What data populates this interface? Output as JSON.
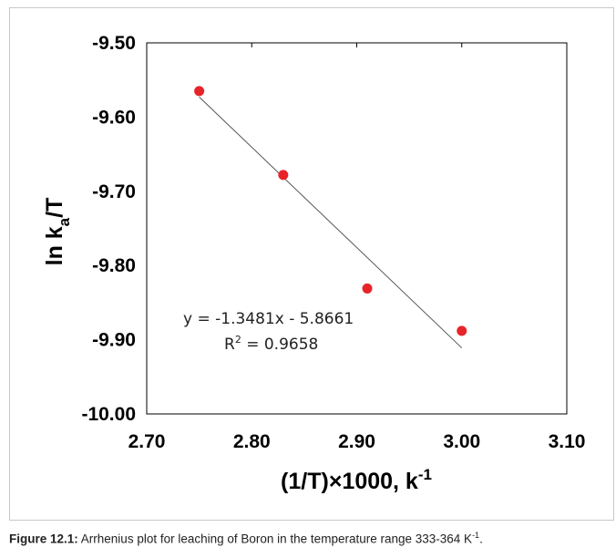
{
  "chart_data": {
    "type": "scatter",
    "title": "",
    "xlabel": {
      "main": "(1/T)×1000, k",
      "sup": "-1"
    },
    "ylabel": {
      "pre": "ln k",
      "sub": "a",
      "post": "/T"
    },
    "xlim": [
      2.7,
      3.1
    ],
    "ylim": [
      -10.0,
      -9.5
    ],
    "xticks": [
      "2.70",
      "2.80",
      "2.90",
      "3.00",
      "3.10"
    ],
    "yticks": [
      "-9.50",
      "-9.60",
      "-9.70",
      "-9.80",
      "-9.90",
      "-10.00"
    ],
    "grid": false,
    "points": [
      {
        "x": 2.75,
        "y": -9.565
      },
      {
        "x": 2.83,
        "y": -9.678
      },
      {
        "x": 2.91,
        "y": -9.831
      },
      {
        "x": 3.0,
        "y": -9.888
      }
    ],
    "trendline": {
      "x0": 2.75,
      "y0": -9.573,
      "x1": 3.0,
      "y1": -9.911
    },
    "equation": "y = -1.3481x - 5.8661",
    "r2": {
      "prefix": "R",
      "sup": "2",
      "rest": " = 0.9658"
    },
    "colors": {
      "marker": "#e8232a",
      "line": "#555555",
      "axis": "#000000"
    }
  },
  "caption": {
    "label": "Figure 12.1:",
    "text": " Arrhenius plot for leaching of Boron in the temperature range 333-364 K",
    "sup": "-1",
    "end": "."
  }
}
